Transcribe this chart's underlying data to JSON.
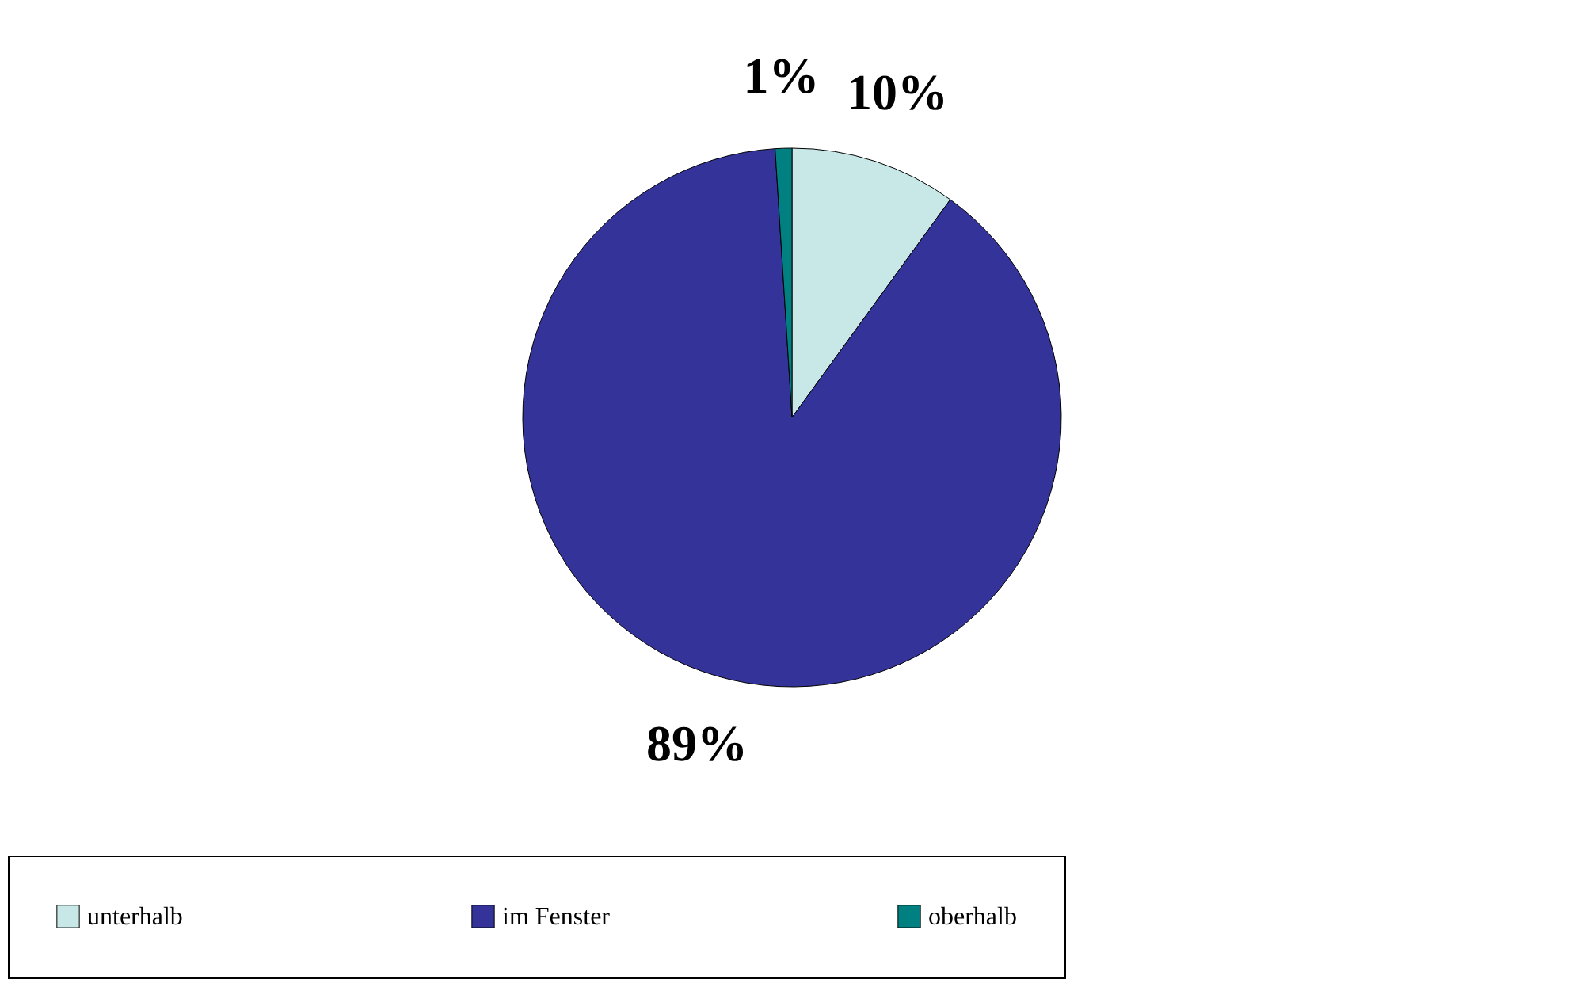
{
  "chart_data": {
    "type": "pie",
    "categories": [
      "unterhalb",
      "im Fenster",
      "oberhalb"
    ],
    "values": [
      10,
      89,
      1
    ],
    "colors": [
      "#c8e8e8",
      "#333399",
      "#008080"
    ],
    "value_labels": [
      "10%",
      "89%",
      "1%"
    ],
    "legend": "bottom"
  }
}
